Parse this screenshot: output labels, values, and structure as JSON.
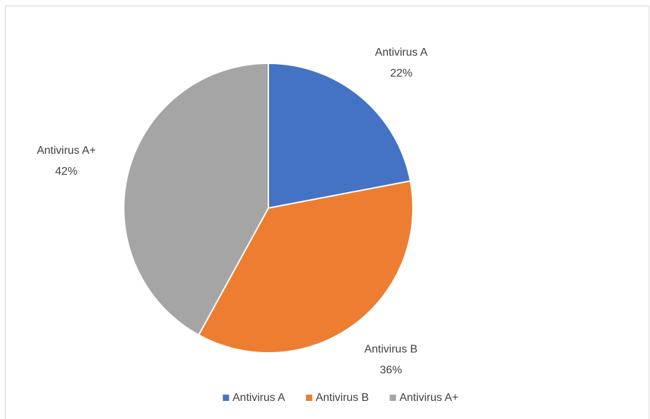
{
  "chart_data": {
    "type": "pie",
    "categories": [
      "Antivirus A",
      "Antivirus B",
      "Antivirus A+"
    ],
    "values": [
      22,
      36,
      42
    ],
    "value_labels": [
      "22%",
      "36%",
      "42%"
    ],
    "colors": [
      "#4472c4",
      "#ed7d31",
      "#a5a5a5"
    ],
    "legend": "bottom"
  }
}
